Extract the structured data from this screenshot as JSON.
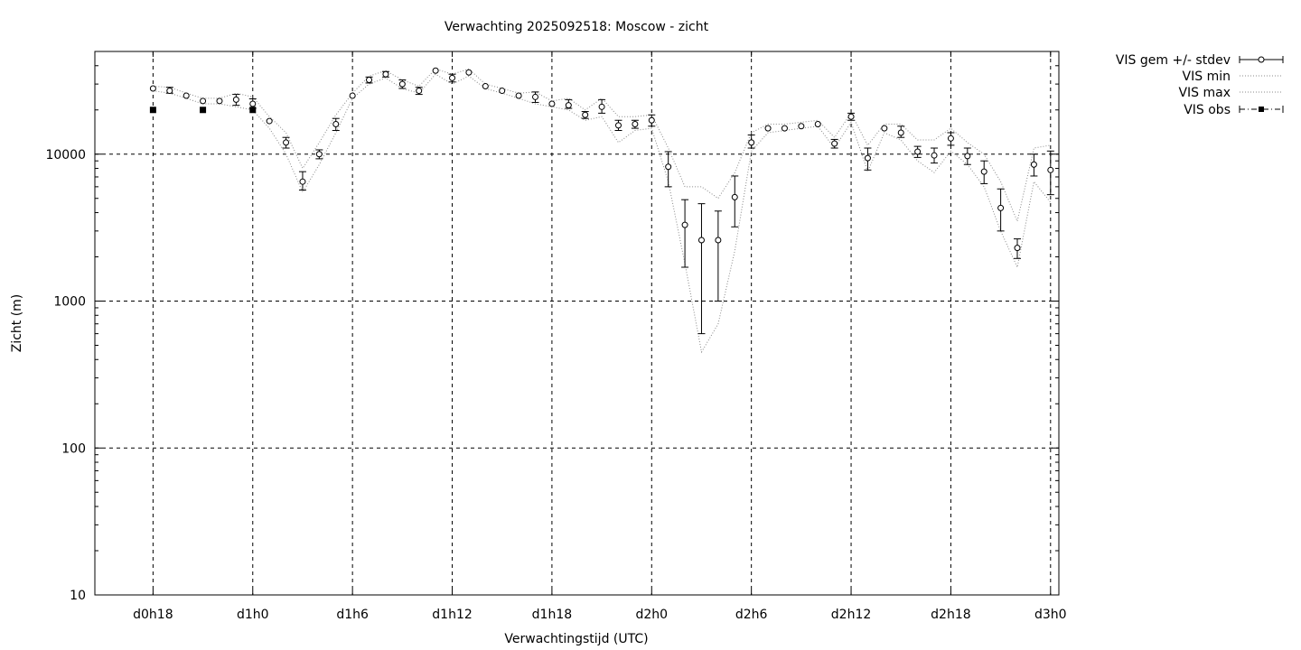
{
  "chart_data": {
    "type": "line",
    "title": "Verwachting 2025092518: Moscow - zicht",
    "xlabel": "Verwachtingstijd (UTC)",
    "ylabel": "Zicht (m)",
    "y_scale": "log",
    "ylim": [
      10,
      50000
    ],
    "x_unit": "hours after d0h0",
    "xlim": [
      14.5,
      72.5
    ],
    "x_ticks": [
      {
        "x": 18,
        "label": "d0h18"
      },
      {
        "x": 24,
        "label": "d1h0"
      },
      {
        "x": 30,
        "label": "d1h6"
      },
      {
        "x": 36,
        "label": "d1h12"
      },
      {
        "x": 42,
        "label": "d1h18"
      },
      {
        "x": 48,
        "label": "d2h0"
      },
      {
        "x": 54,
        "label": "d2h6"
      },
      {
        "x": 60,
        "label": "d2h12"
      },
      {
        "x": 66,
        "label": "d2h18"
      },
      {
        "x": 72,
        "label": "d3h0"
      }
    ],
    "y_ticks": [
      {
        "y": 10,
        "label": "10"
      },
      {
        "y": 100,
        "label": "100"
      },
      {
        "y": 1000,
        "label": "1000"
      },
      {
        "y": 10000,
        "label": "10000"
      }
    ],
    "grid": true,
    "legend_position": "outside-top-right",
    "series": [
      {
        "name": "VIS gem +/- stdev",
        "style": "points-errorbars",
        "x": [
          18,
          19,
          20,
          21,
          22,
          23,
          24,
          25,
          26,
          27,
          28,
          29,
          30,
          31,
          32,
          33,
          34,
          35,
          36,
          37,
          38,
          39,
          40,
          41,
          42,
          43,
          44,
          45,
          46,
          47,
          48,
          49,
          50,
          51,
          52,
          53,
          54,
          55,
          56,
          57,
          58,
          59,
          60,
          61,
          62,
          63,
          64,
          65,
          66,
          67,
          68,
          69,
          70,
          71,
          72
        ],
        "y": [
          28000,
          27000,
          25000,
          23000,
          23000,
          23500,
          22000,
          16800,
          12000,
          6500,
          10000,
          16000,
          25000,
          32000,
          35000,
          30000,
          27000,
          37000,
          33000,
          36000,
          29000,
          27000,
          25000,
          24500,
          22000,
          21500,
          18500,
          21000,
          15700,
          16000,
          17000,
          8200,
          3300,
          2600,
          2600,
          5100,
          12000,
          15000,
          15000,
          15500,
          16000,
          11800,
          18000,
          9400,
          15000,
          14000,
          10400,
          9800,
          12800,
          9700,
          7600,
          4300,
          2300,
          8500,
          7800
        ],
        "y_low": [
          28000,
          26000,
          25000,
          23000,
          23000,
          21500,
          20500,
          16800,
          11000,
          5700,
          9300,
          14500,
          25000,
          30500,
          33500,
          28000,
          25500,
          37000,
          31000,
          36000,
          29000,
          27000,
          25000,
          22500,
          22000,
          20500,
          17500,
          19000,
          14500,
          15000,
          15500,
          6000,
          1700,
          600,
          1000,
          3200,
          11000,
          15000,
          15000,
          15500,
          16000,
          11000,
          17000,
          7800,
          15000,
          13000,
          9500,
          8700,
          11500,
          8500,
          6300,
          3000,
          1950,
          7100,
          5300
        ],
        "y_high": [
          28000,
          28500,
          25000,
          23000,
          23000,
          25500,
          23800,
          16800,
          13000,
          7600,
          10700,
          17500,
          25000,
          33500,
          36500,
          32000,
          28500,
          37000,
          35000,
          36000,
          29000,
          27000,
          25000,
          26500,
          22000,
          23500,
          19500,
          23500,
          17000,
          17000,
          18500,
          10400,
          4900,
          4600,
          4100,
          7100,
          13500,
          15000,
          15000,
          15500,
          16000,
          12600,
          19000,
          11000,
          15000,
          15500,
          11300,
          11000,
          14000,
          11000,
          9000,
          5800,
          2650,
          10000,
          10500
        ]
      },
      {
        "name": "VIS min",
        "style": "dotted-line",
        "x": [
          18,
          19,
          20,
          21,
          22,
          23,
          24,
          25,
          26,
          27,
          28,
          29,
          30,
          31,
          32,
          33,
          34,
          35,
          36,
          37,
          38,
          39,
          40,
          41,
          42,
          43,
          44,
          45,
          46,
          47,
          48,
          49,
          50,
          51,
          52,
          53,
          54,
          55,
          56,
          57,
          58,
          59,
          60,
          61,
          62,
          63,
          64,
          65,
          66,
          67,
          68,
          69,
          70,
          71,
          72
        ],
        "y": [
          27000,
          26000,
          24000,
          22000,
          22000,
          21000,
          20000,
          15000,
          10000,
          5500,
          8500,
          14000,
          24000,
          30000,
          33000,
          28000,
          26000,
          35000,
          30000,
          34000,
          28000,
          26000,
          24000,
          22000,
          21000,
          20000,
          17000,
          18000,
          12000,
          14500,
          15000,
          6500,
          1800,
          450,
          700,
          2200,
          10500,
          14000,
          14500,
          15000,
          15500,
          11000,
          16500,
          7600,
          14000,
          12500,
          9000,
          7500,
          10500,
          8500,
          6000,
          3000,
          1700,
          6500,
          4700
        ]
      },
      {
        "name": "VIS max",
        "style": "dotted-line",
        "x": [
          18,
          19,
          20,
          21,
          22,
          23,
          24,
          25,
          26,
          27,
          28,
          29,
          30,
          31,
          32,
          33,
          34,
          35,
          36,
          37,
          38,
          39,
          40,
          41,
          42,
          43,
          44,
          45,
          46,
          47,
          48,
          49,
          50,
          51,
          52,
          53,
          54,
          55,
          56,
          57,
          58,
          59,
          60,
          61,
          62,
          63,
          64,
          65,
          66,
          67,
          68,
          69,
          70,
          71,
          72
        ],
        "y": [
          29000,
          28500,
          26000,
          24000,
          24000,
          26000,
          24500,
          18000,
          14000,
          8000,
          12000,
          18500,
          26000,
          34000,
          37000,
          32000,
          29000,
          38000,
          35000,
          38000,
          30000,
          28000,
          26000,
          26500,
          23000,
          24000,
          20000,
          24000,
          18000,
          18000,
          18500,
          11000,
          6000,
          6000,
          5000,
          7500,
          14000,
          16000,
          16000,
          16500,
          17000,
          13000,
          19000,
          11500,
          16000,
          16000,
          12500,
          12500,
          15000,
          12000,
          10000,
          6500,
          3500,
          11000,
          11500
        ]
      },
      {
        "name": "VIS obs",
        "style": "filled-squares",
        "x": [
          18,
          21,
          24
        ],
        "y": [
          20000,
          20000,
          20000
        ]
      }
    ]
  }
}
